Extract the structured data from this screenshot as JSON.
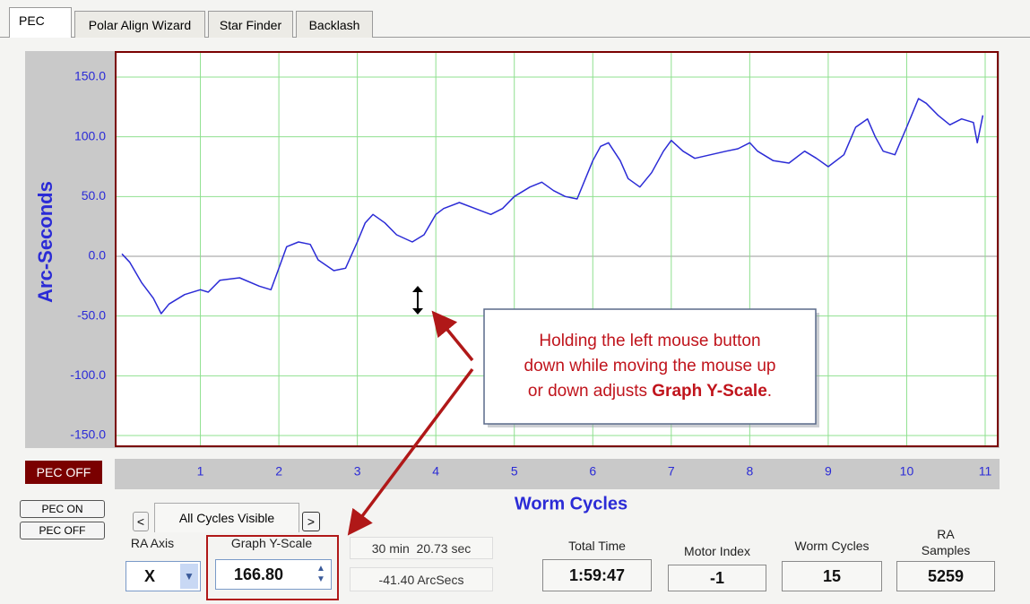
{
  "tabs": [
    "PEC",
    "Polar Align Wizard",
    "Star Finder",
    "Backlash"
  ],
  "chart_data": {
    "type": "line",
    "ylabel": "Arc-Seconds",
    "xlabel": "Worm Cycles",
    "x": [
      0,
      0.1,
      0.25,
      0.4,
      0.5,
      0.6,
      0.8,
      1.0,
      1.1,
      1.25,
      1.5,
      1.75,
      1.9,
      2.0,
      2.1,
      2.25,
      2.4,
      2.5,
      2.7,
      2.85,
      3.0,
      3.1,
      3.2,
      3.35,
      3.5,
      3.7,
      3.85,
      4.0,
      4.1,
      4.3,
      4.5,
      4.7,
      4.85,
      5.0,
      5.2,
      5.35,
      5.5,
      5.65,
      5.8,
      6.0,
      6.1,
      6.2,
      6.35,
      6.45,
      6.6,
      6.75,
      6.9,
      7.0,
      7.15,
      7.3,
      7.5,
      7.7,
      7.85,
      8.0,
      8.1,
      8.3,
      8.5,
      8.7,
      8.85,
      9.0,
      9.2,
      9.35,
      9.5,
      9.6,
      9.7,
      9.85,
      10.0,
      10.15,
      10.25,
      10.4,
      10.55,
      10.7,
      10.85,
      10.9,
      10.97
    ],
    "values": [
      2,
      -5,
      -22,
      -35,
      -48,
      -40,
      -32,
      -28,
      -30,
      -20,
      -18,
      -25,
      -28,
      -10,
      8,
      12,
      10,
      -3,
      -12,
      -10,
      12,
      28,
      35,
      28,
      18,
      12,
      18,
      35,
      40,
      45,
      40,
      35,
      40,
      50,
      58,
      62,
      55,
      50,
      48,
      80,
      92,
      95,
      80,
      65,
      58,
      70,
      88,
      97,
      88,
      82,
      85,
      88,
      90,
      95,
      88,
      80,
      78,
      88,
      82,
      75,
      85,
      108,
      115,
      100,
      88,
      85,
      108,
      132,
      128,
      118,
      110,
      115,
      112,
      95,
      118
    ],
    "color": "#2b2bd6",
    "xlim": [
      -0.08,
      11.16
    ],
    "ylim": [
      -159,
      171
    ],
    "xticks": [
      1,
      2,
      3,
      4,
      5,
      6,
      7,
      8,
      9,
      10,
      11
    ],
    "yticks": [
      {
        "value": 150,
        "label": "150.0"
      },
      {
        "value": 100,
        "label": "100.0"
      },
      {
        "value": 50,
        "label": "50.0"
      },
      {
        "value": 0,
        "label": "0.0"
      },
      {
        "value": -50,
        "label": "-50.0"
      },
      {
        "value": -100,
        "label": "-100.0"
      },
      {
        "value": -150,
        "label": "-150.0"
      }
    ],
    "grid": true
  },
  "annotation": {
    "lines": [
      "Holding the left mouse button",
      "down while moving the mouse up"
    ],
    "last_line": "or down adjusts",
    "bold": "Graph Y-Scale",
    "end": "."
  },
  "controls": {
    "pec_status": "PEC OFF",
    "pec_on_button": "PEC ON",
    "pec_off_button": "PEC OFF",
    "prev": "<",
    "cycles_view": "All Cycles Visible",
    "next": ">",
    "ra_axis_label": "RA Axis",
    "ra_axis_value": "X",
    "y_scale_label": "Graph Y-Scale",
    "y_scale_value": "166.80",
    "period": "30 min  20.73 sec",
    "error": "-41.40 ArcSecs",
    "total_time_label": "Total Time",
    "total_time": "1:59:47",
    "motor_index_label": "Motor Index",
    "motor_index": "-1",
    "worm_cycles_label": "Worm Cycles",
    "worm_cycles": "15",
    "ra_samples_label": [
      "RA",
      "Samples"
    ],
    "ra_samples": "5259"
  }
}
